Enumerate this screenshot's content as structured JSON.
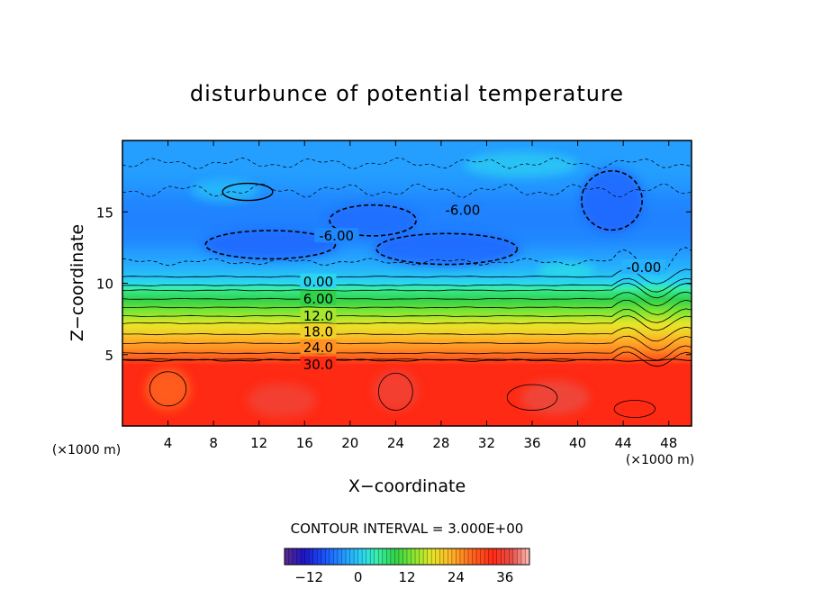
{
  "chart_data": {
    "type": "heatmap",
    "title": "disturbunce of potential temperature",
    "xlabel": "X−coordinate",
    "ylabel": "Z−coordinate",
    "x_unit": "(×1000 m)",
    "y_unit": "(×1000 m)",
    "xlim": [
      0,
      50
    ],
    "ylim": [
      0,
      20
    ],
    "x_ticks": [
      4,
      8,
      12,
      16,
      20,
      24,
      28,
      32,
      36,
      40,
      44,
      48
    ],
    "y_ticks": [
      5,
      10,
      15
    ],
    "contour_interval_text": "CONTOUR INTERVAL = 3.000E+00",
    "contour_interval": 3,
    "contour_labels": [
      {
        "text": "0.00",
        "x": 17.2,
        "z": 10.1
      },
      {
        "text": "6.00",
        "x": 17.2,
        "z": 8.9
      },
      {
        "text": "12.0",
        "x": 17.2,
        "z": 7.7
      },
      {
        "text": "18.0",
        "x": 17.2,
        "z": 6.6
      },
      {
        "text": "24.0",
        "x": 17.2,
        "z": 5.5
      },
      {
        "text": "30.0",
        "x": 17.2,
        "z": 4.3
      },
      {
        "text": "-6.00",
        "x": 18.8,
        "z": 13.3
      },
      {
        "text": "-6.00",
        "x": 29.9,
        "z": 15.1
      },
      {
        "text": "-0.00",
        "x": 45.8,
        "z": 11.1
      }
    ],
    "profile_z": [
      0,
      4.3,
      4.9,
      5.5,
      6.1,
      6.6,
      7.2,
      7.7,
      8.3,
      8.9,
      9.5,
      10.1,
      11,
      12,
      13,
      14,
      15,
      16,
      17,
      18,
      19,
      20
    ],
    "profile_theta": [
      33,
      33,
      28,
      25,
      23,
      20,
      18,
      15,
      12,
      9,
      6,
      1,
      -1.5,
      -3,
      -4.5,
      -5,
      -5,
      -4.5,
      -3.5,
      -3,
      -3,
      -3
    ],
    "colorbar": {
      "min": -18,
      "max": 42,
      "ticks": [
        -12,
        0,
        12,
        24,
        36
      ],
      "tick_labels": [
        "−12",
        "0",
        "12",
        "24",
        "36"
      ]
    }
  }
}
